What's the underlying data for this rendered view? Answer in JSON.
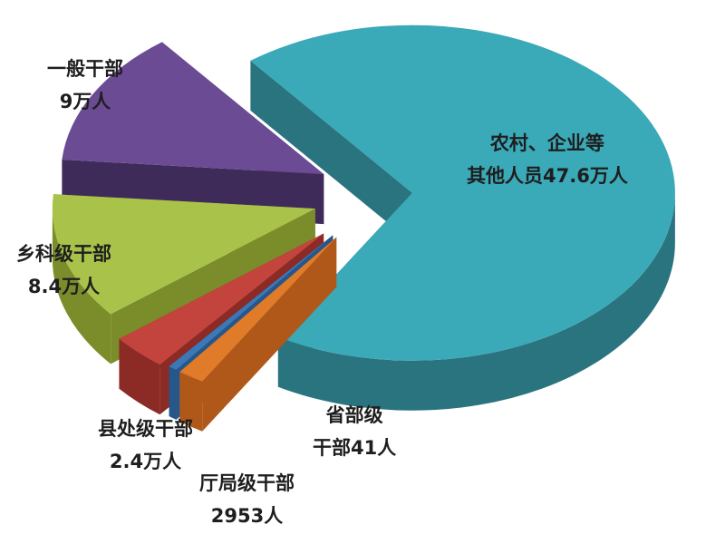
{
  "chart_data": {
    "type": "pie",
    "style": "3d-exploded",
    "unit_note_visible": false,
    "slices": [
      {
        "line1": "农村、企业等",
        "line2": "其他人员47.6万人",
        "category": "农村、企业等其他人员",
        "value": 476000,
        "color": "#3aa9b8",
        "side": "#2a7480"
      },
      {
        "line1": "省部级",
        "line2": "干部41人",
        "category": "省部级干部",
        "value": 41,
        "color": "#e07b2a",
        "side": "#b0581a"
      },
      {
        "line1": "厅局级干部",
        "line2": "2953人",
        "category": "厅局级干部",
        "value": 2953,
        "color": "#3a78b8",
        "side": "#27578a"
      },
      {
        "line1": "县处级干部",
        "line2": "2.4万人",
        "category": "县处级干部",
        "value": 24000,
        "color": "#c3443c",
        "side": "#8c2a25"
      },
      {
        "line1": "乡科级干部",
        "line2": "8.4万人",
        "category": "乡科级干部",
        "value": 84000,
        "color": "#a9c24a",
        "side": "#7a8d2a"
      },
      {
        "line1": "一般干部",
        "line2": "9万人",
        "category": "一般干部",
        "value": 90000,
        "color": "#6b4b94",
        "side": "#3f2b5a"
      }
    ],
    "legend": "none"
  }
}
